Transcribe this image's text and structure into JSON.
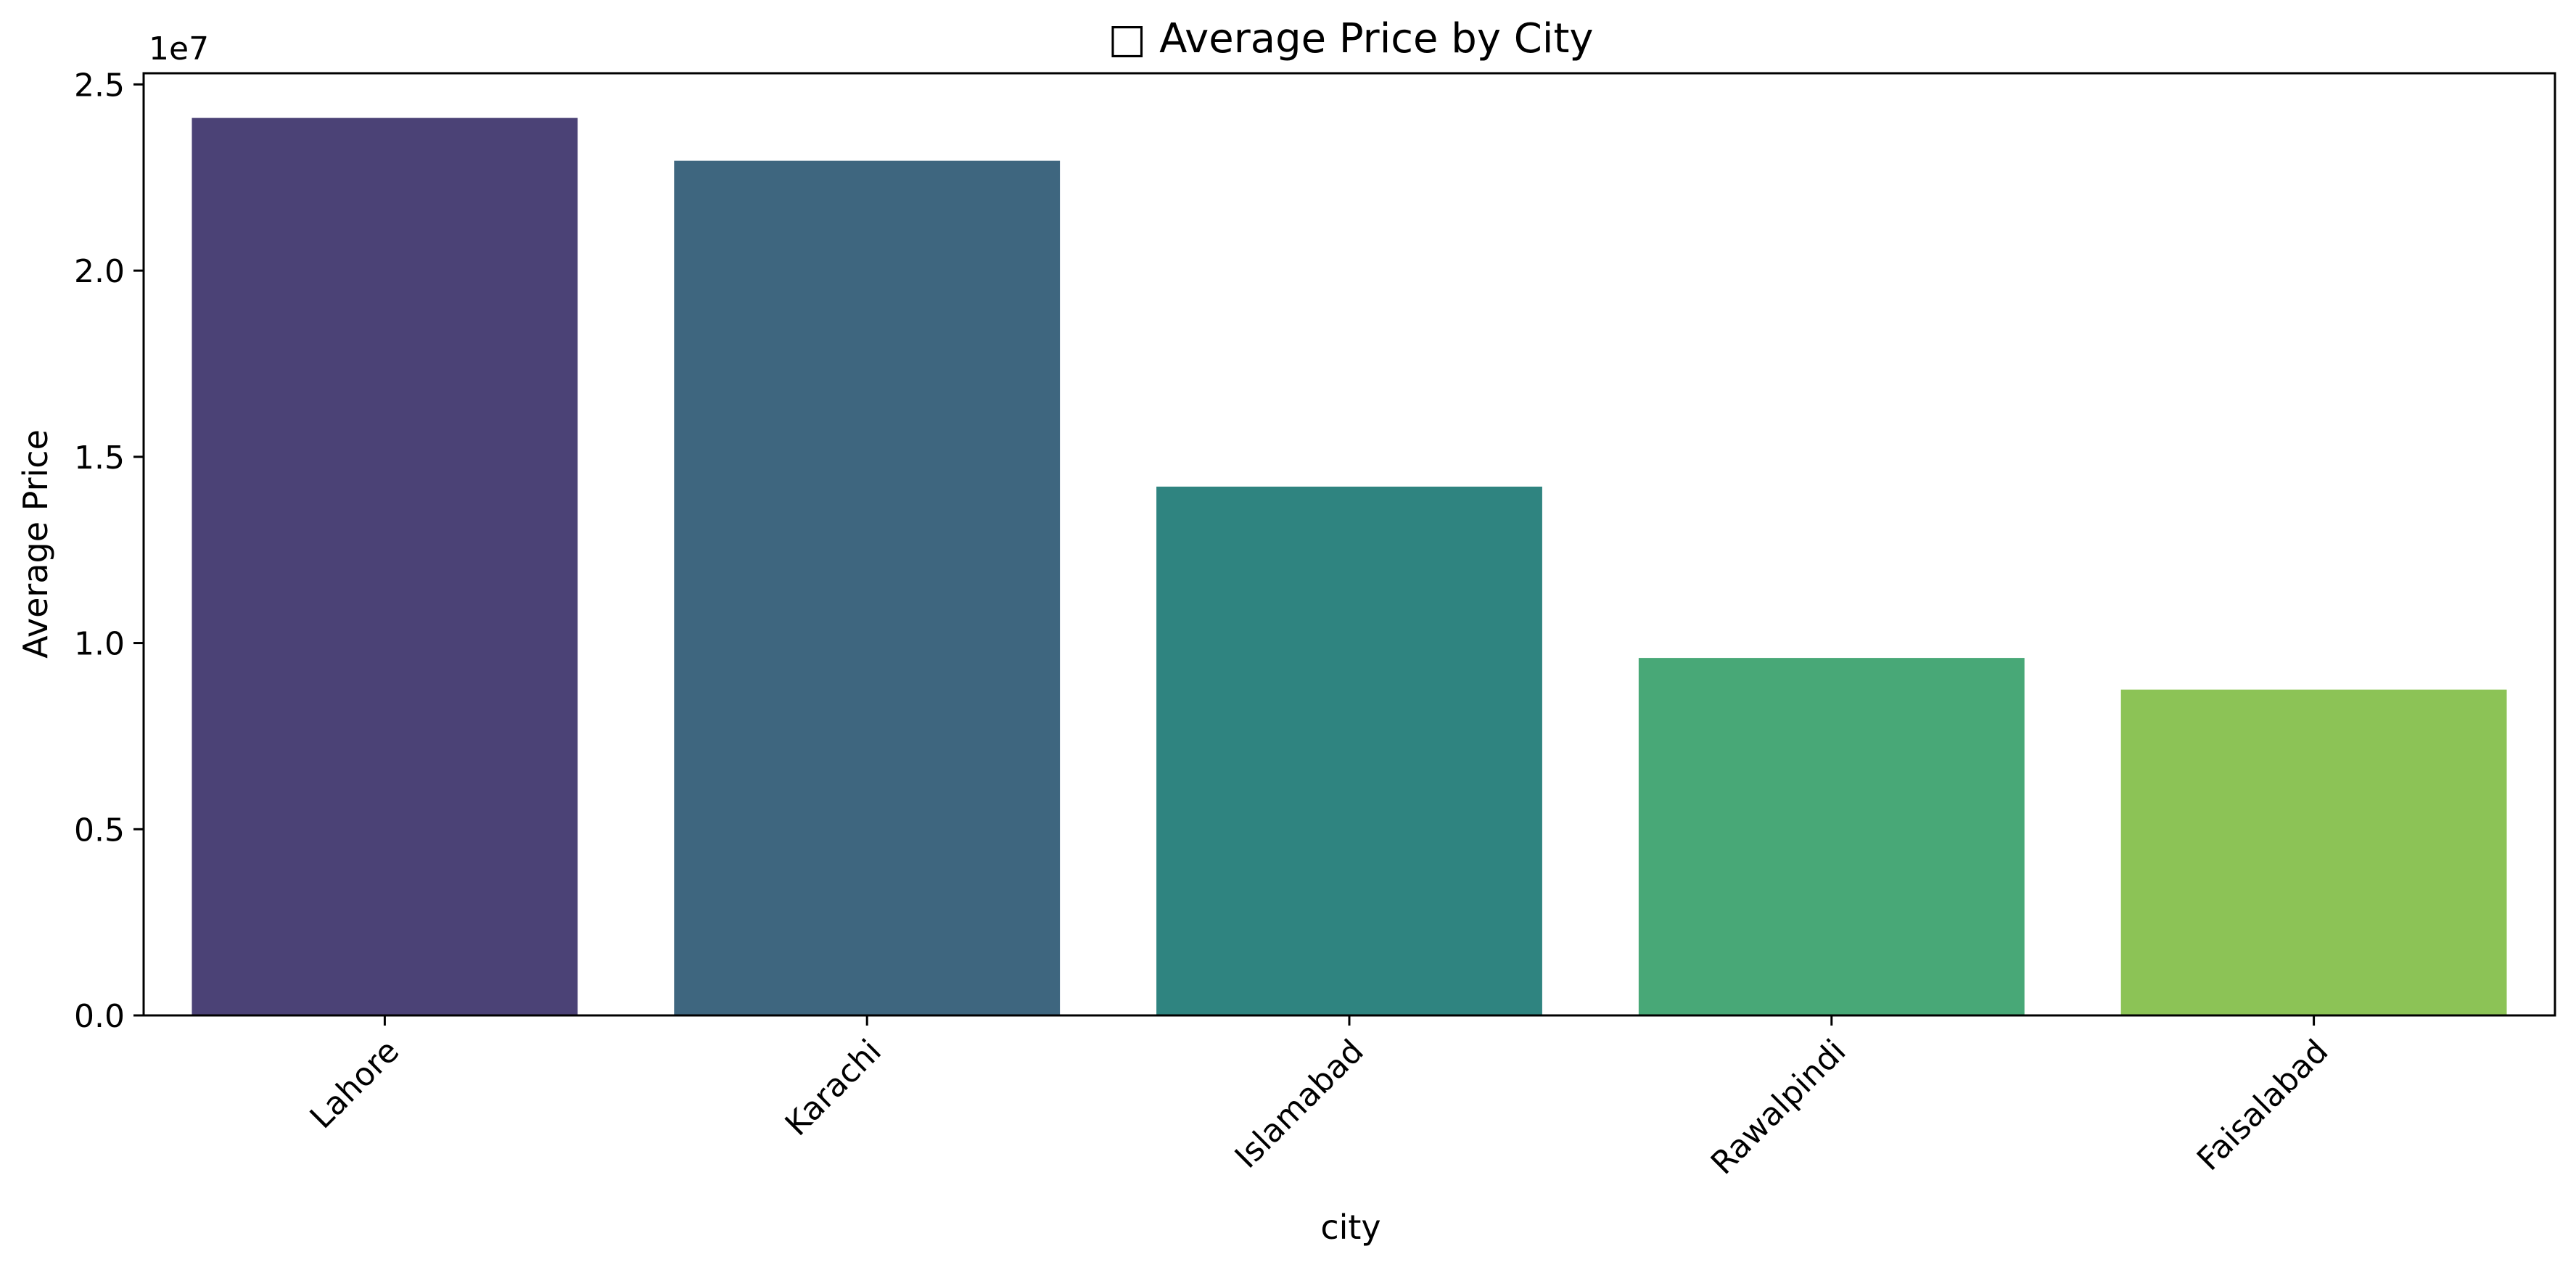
{
  "chart_data": {
    "type": "bar",
    "title": "□ Average Price by City",
    "xlabel": "city",
    "ylabel": "Average Price",
    "y_offset_label": "1e7",
    "categories": [
      "Lahore",
      "Karachi",
      "Islamabad",
      "Rawalpindi",
      "Faisalabad"
    ],
    "values": [
      24100000,
      22950000,
      14200000,
      9600000,
      8750000
    ],
    "colors": [
      "#4b4276",
      "#3e667f",
      "#2f8480",
      "#48a877",
      "#8cc356"
    ],
    "ylim": [
      0,
      25300000
    ],
    "yticks": [
      0,
      5000000,
      10000000,
      15000000,
      20000000,
      25000000
    ],
    "ytick_labels": [
      "0.0",
      "0.5",
      "1.0",
      "1.5",
      "2.0",
      "2.5"
    ],
    "grid": false,
    "legend": "none"
  }
}
